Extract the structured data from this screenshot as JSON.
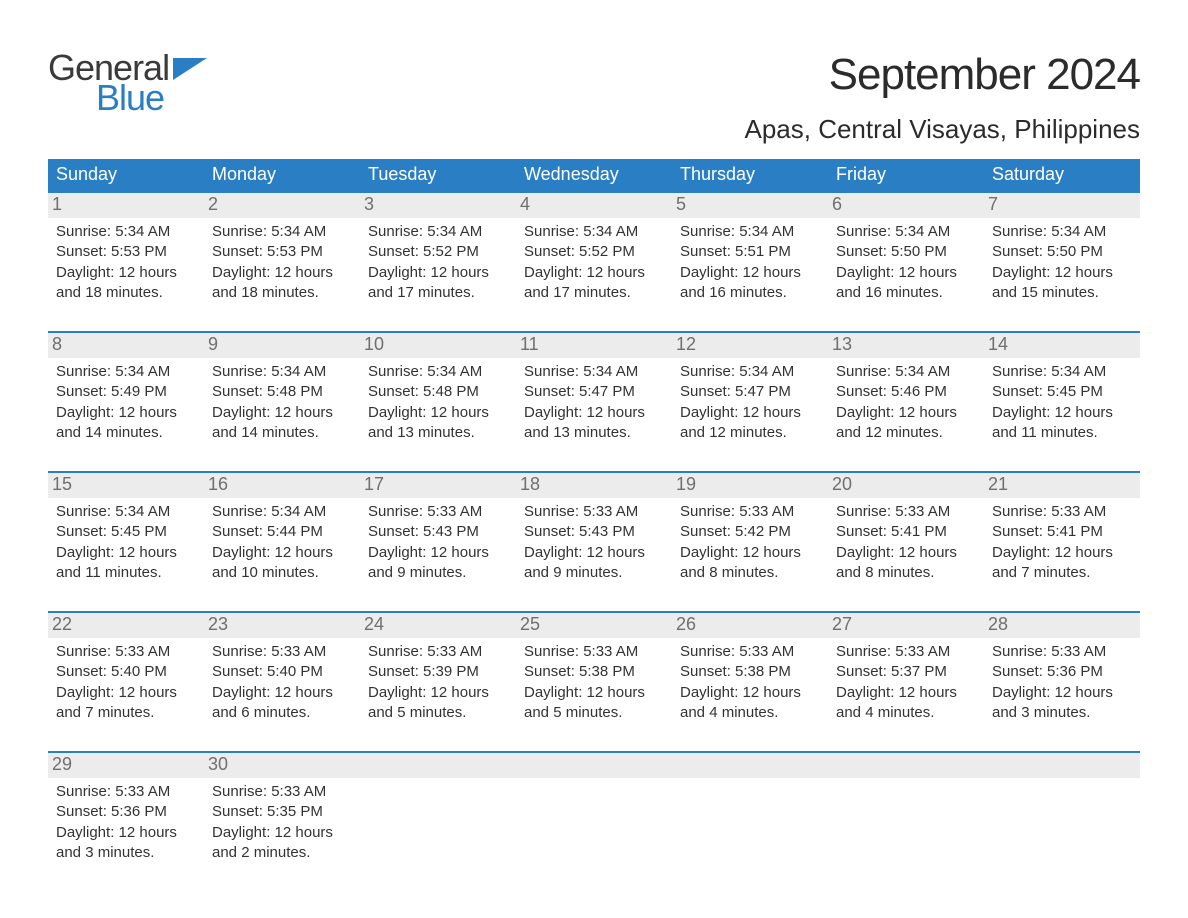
{
  "logo": {
    "word1": "General",
    "word2": "Blue",
    "text_color": "#3a3a3a",
    "accent_color": "#2a7fc4"
  },
  "title": "September 2024",
  "location": "Apas, Central Visayas, Philippines",
  "colors": {
    "header_bg": "#2a7fc4",
    "header_text": "#ffffff",
    "week_border": "#2a7fc4",
    "daynum_bg": "#ececec",
    "daynum_text": "#6f6f6f",
    "body_text": "#333333",
    "background": "#ffffff"
  },
  "day_headers": [
    "Sunday",
    "Monday",
    "Tuesday",
    "Wednesday",
    "Thursday",
    "Friday",
    "Saturday"
  ],
  "weeks": [
    [
      {
        "n": "1",
        "sunrise": "Sunrise: 5:34 AM",
        "sunset": "Sunset: 5:53 PM",
        "day1": "Daylight: 12 hours",
        "day2": "and 18 minutes."
      },
      {
        "n": "2",
        "sunrise": "Sunrise: 5:34 AM",
        "sunset": "Sunset: 5:53 PM",
        "day1": "Daylight: 12 hours",
        "day2": "and 18 minutes."
      },
      {
        "n": "3",
        "sunrise": "Sunrise: 5:34 AM",
        "sunset": "Sunset: 5:52 PM",
        "day1": "Daylight: 12 hours",
        "day2": "and 17 minutes."
      },
      {
        "n": "4",
        "sunrise": "Sunrise: 5:34 AM",
        "sunset": "Sunset: 5:52 PM",
        "day1": "Daylight: 12 hours",
        "day2": "and 17 minutes."
      },
      {
        "n": "5",
        "sunrise": "Sunrise: 5:34 AM",
        "sunset": "Sunset: 5:51 PM",
        "day1": "Daylight: 12 hours",
        "day2": "and 16 minutes."
      },
      {
        "n": "6",
        "sunrise": "Sunrise: 5:34 AM",
        "sunset": "Sunset: 5:50 PM",
        "day1": "Daylight: 12 hours",
        "day2": "and 16 minutes."
      },
      {
        "n": "7",
        "sunrise": "Sunrise: 5:34 AM",
        "sunset": "Sunset: 5:50 PM",
        "day1": "Daylight: 12 hours",
        "day2": "and 15 minutes."
      }
    ],
    [
      {
        "n": "8",
        "sunrise": "Sunrise: 5:34 AM",
        "sunset": "Sunset: 5:49 PM",
        "day1": "Daylight: 12 hours",
        "day2": "and 14 minutes."
      },
      {
        "n": "9",
        "sunrise": "Sunrise: 5:34 AM",
        "sunset": "Sunset: 5:48 PM",
        "day1": "Daylight: 12 hours",
        "day2": "and 14 minutes."
      },
      {
        "n": "10",
        "sunrise": "Sunrise: 5:34 AM",
        "sunset": "Sunset: 5:48 PM",
        "day1": "Daylight: 12 hours",
        "day2": "and 13 minutes."
      },
      {
        "n": "11",
        "sunrise": "Sunrise: 5:34 AM",
        "sunset": "Sunset: 5:47 PM",
        "day1": "Daylight: 12 hours",
        "day2": "and 13 minutes."
      },
      {
        "n": "12",
        "sunrise": "Sunrise: 5:34 AM",
        "sunset": "Sunset: 5:47 PM",
        "day1": "Daylight: 12 hours",
        "day2": "and 12 minutes."
      },
      {
        "n": "13",
        "sunrise": "Sunrise: 5:34 AM",
        "sunset": "Sunset: 5:46 PM",
        "day1": "Daylight: 12 hours",
        "day2": "and 12 minutes."
      },
      {
        "n": "14",
        "sunrise": "Sunrise: 5:34 AM",
        "sunset": "Sunset: 5:45 PM",
        "day1": "Daylight: 12 hours",
        "day2": "and 11 minutes."
      }
    ],
    [
      {
        "n": "15",
        "sunrise": "Sunrise: 5:34 AM",
        "sunset": "Sunset: 5:45 PM",
        "day1": "Daylight: 12 hours",
        "day2": "and 11 minutes."
      },
      {
        "n": "16",
        "sunrise": "Sunrise: 5:34 AM",
        "sunset": "Sunset: 5:44 PM",
        "day1": "Daylight: 12 hours",
        "day2": "and 10 minutes."
      },
      {
        "n": "17",
        "sunrise": "Sunrise: 5:33 AM",
        "sunset": "Sunset: 5:43 PM",
        "day1": "Daylight: 12 hours",
        "day2": "and 9 minutes."
      },
      {
        "n": "18",
        "sunrise": "Sunrise: 5:33 AM",
        "sunset": "Sunset: 5:43 PM",
        "day1": "Daylight: 12 hours",
        "day2": "and 9 minutes."
      },
      {
        "n": "19",
        "sunrise": "Sunrise: 5:33 AM",
        "sunset": "Sunset: 5:42 PM",
        "day1": "Daylight: 12 hours",
        "day2": "and 8 minutes."
      },
      {
        "n": "20",
        "sunrise": "Sunrise: 5:33 AM",
        "sunset": "Sunset: 5:41 PM",
        "day1": "Daylight: 12 hours",
        "day2": "and 8 minutes."
      },
      {
        "n": "21",
        "sunrise": "Sunrise: 5:33 AM",
        "sunset": "Sunset: 5:41 PM",
        "day1": "Daylight: 12 hours",
        "day2": "and 7 minutes."
      }
    ],
    [
      {
        "n": "22",
        "sunrise": "Sunrise: 5:33 AM",
        "sunset": "Sunset: 5:40 PM",
        "day1": "Daylight: 12 hours",
        "day2": "and 7 minutes."
      },
      {
        "n": "23",
        "sunrise": "Sunrise: 5:33 AM",
        "sunset": "Sunset: 5:40 PM",
        "day1": "Daylight: 12 hours",
        "day2": "and 6 minutes."
      },
      {
        "n": "24",
        "sunrise": "Sunrise: 5:33 AM",
        "sunset": "Sunset: 5:39 PM",
        "day1": "Daylight: 12 hours",
        "day2": "and 5 minutes."
      },
      {
        "n": "25",
        "sunrise": "Sunrise: 5:33 AM",
        "sunset": "Sunset: 5:38 PM",
        "day1": "Daylight: 12 hours",
        "day2": "and 5 minutes."
      },
      {
        "n": "26",
        "sunrise": "Sunrise: 5:33 AM",
        "sunset": "Sunset: 5:38 PM",
        "day1": "Daylight: 12 hours",
        "day2": "and 4 minutes."
      },
      {
        "n": "27",
        "sunrise": "Sunrise: 5:33 AM",
        "sunset": "Sunset: 5:37 PM",
        "day1": "Daylight: 12 hours",
        "day2": "and 4 minutes."
      },
      {
        "n": "28",
        "sunrise": "Sunrise: 5:33 AM",
        "sunset": "Sunset: 5:36 PM",
        "day1": "Daylight: 12 hours",
        "day2": "and 3 minutes."
      }
    ],
    [
      {
        "n": "29",
        "sunrise": "Sunrise: 5:33 AM",
        "sunset": "Sunset: 5:36 PM",
        "day1": "Daylight: 12 hours",
        "day2": "and 3 minutes."
      },
      {
        "n": "30",
        "sunrise": "Sunrise: 5:33 AM",
        "sunset": "Sunset: 5:35 PM",
        "day1": "Daylight: 12 hours",
        "day2": "and 2 minutes."
      },
      {
        "empty": true
      },
      {
        "empty": true
      },
      {
        "empty": true
      },
      {
        "empty": true
      },
      {
        "empty": true
      }
    ]
  ]
}
